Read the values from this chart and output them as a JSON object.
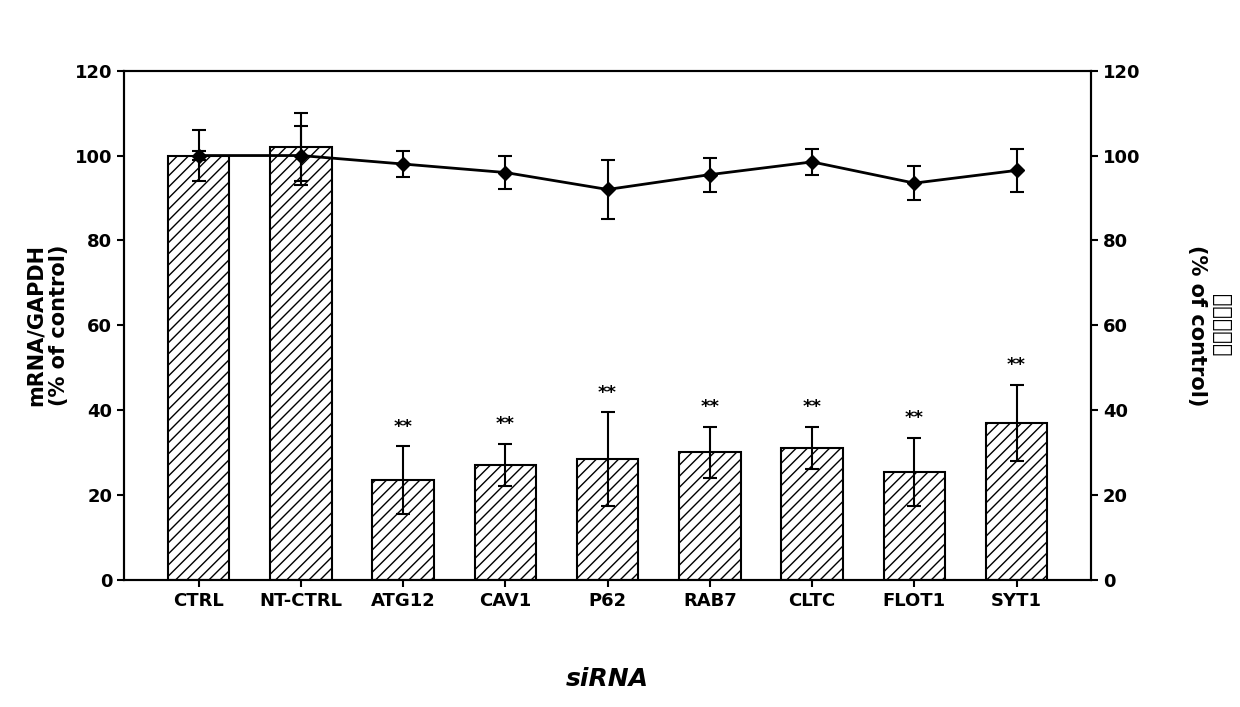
{
  "categories": [
    "CTRL",
    "NT-CTRL",
    "ATG12",
    "CAV1",
    "P62",
    "RAB7",
    "CLTC",
    "FLOT1",
    "SYT1"
  ],
  "bar_values": [
    100,
    102,
    23.5,
    27,
    28.5,
    30,
    31,
    25.5,
    37
  ],
  "bar_errors": [
    6,
    8,
    8,
    5,
    11,
    6,
    5,
    8,
    9
  ],
  "line_values": [
    100,
    100,
    98,
    96,
    92,
    95.5,
    98.5,
    93.5,
    96.5
  ],
  "line_errors": [
    1,
    7,
    3,
    4,
    7,
    4,
    3,
    4,
    5
  ],
  "significance": [
    "",
    "",
    "**",
    "**",
    "**",
    "**",
    "**",
    "**",
    "**"
  ],
  "bar_color": "#ffffff",
  "bar_edgecolor": "#000000",
  "hatch": "///",
  "line_color": "#000000",
  "marker": "D",
  "marker_size": 7,
  "ylabel_left": "mRNA/GAPDH\n(% of control)",
  "ylabel_right_line1": "细胞存活率",
  "ylabel_right_line2": "(% of control)",
  "xlabel": "siRNA",
  "ylim": [
    0,
    120
  ],
  "yticks": [
    0,
    20,
    40,
    60,
    80,
    100,
    120
  ],
  "sig_fontsize": 13,
  "axis_label_fontsize": 15,
  "tick_fontsize": 13,
  "xlabel_fontsize": 18,
  "background_color": "#ffffff"
}
